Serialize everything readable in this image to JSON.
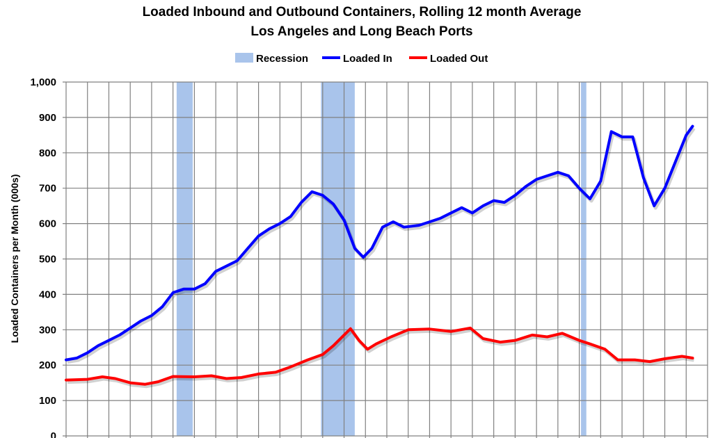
{
  "chart_data": {
    "type": "line",
    "title": "Loaded Inbound and Outbound Containers, Rolling 12 month Average",
    "subtitle": "Los Angeles and Long Beach Ports",
    "xlabel": "",
    "ylabel": "Loaded Containers per Month (000s)",
    "xlim": [
      1996,
      2026
    ],
    "ylim": [
      0,
      1000
    ],
    "yticks": [
      "0",
      "100",
      "200",
      "300",
      "400",
      "500",
      "600",
      "700",
      "800",
      "900",
      "1,000"
    ],
    "grid": true,
    "legend_placement": "top-center",
    "legend": [
      "Recession",
      "Loaded In",
      "Loaded Out"
    ],
    "colors": {
      "recession": "#A9C4EB",
      "loaded_in": "#0000FF",
      "loaded_out": "#FF0000"
    },
    "recessions": [
      [
        2001.17,
        2001.92
      ],
      [
        2007.92,
        2009.5
      ],
      [
        2020.08,
        2020.33
      ]
    ],
    "series": [
      {
        "name": "Loaded In",
        "x": [
          1996.0,
          1996.5,
          1997.0,
          1997.5,
          1998.0,
          1998.5,
          1999.0,
          1999.5,
          2000.0,
          2000.5,
          2001.0,
          2001.5,
          2002.0,
          2002.5,
          2003.0,
          2003.5,
          2004.0,
          2004.5,
          2005.0,
          2005.5,
          2006.0,
          2006.5,
          2007.0,
          2007.5,
          2008.0,
          2008.5,
          2009.0,
          2009.5,
          2009.9,
          2010.3,
          2010.8,
          2011.3,
          2011.8,
          2012.5,
          2013.0,
          2013.5,
          2014.0,
          2014.5,
          2015.0,
          2015.5,
          2016.0,
          2016.5,
          2017.0,
          2017.5,
          2018.0,
          2018.5,
          2019.0,
          2019.5,
          2020.0,
          2020.5,
          2021.0,
          2021.5,
          2022.0,
          2022.5,
          2023.0,
          2023.5,
          2024.0,
          2024.5,
          2025.0,
          2025.3
        ],
        "values": [
          215,
          220,
          235,
          255,
          270,
          285,
          305,
          325,
          340,
          365,
          405,
          415,
          415,
          430,
          465,
          480,
          495,
          530,
          565,
          585,
          600,
          620,
          660,
          690,
          680,
          655,
          610,
          530,
          505,
          530,
          590,
          605,
          590,
          595,
          605,
          615,
          630,
          645,
          630,
          650,
          665,
          660,
          680,
          705,
          725,
          735,
          745,
          735,
          700,
          670,
          720,
          860,
          845,
          845,
          730,
          650,
          700,
          775,
          850,
          875
        ]
      },
      {
        "name": "Loaded Out",
        "x": [
          1996.0,
          1997.0,
          1997.7,
          1998.3,
          1999.0,
          1999.7,
          2000.3,
          2001.0,
          2002.0,
          2002.8,
          2003.5,
          2004.2,
          2005.0,
          2005.8,
          2006.5,
          2007.3,
          2008.0,
          2008.5,
          2009.0,
          2009.3,
          2009.7,
          2010.1,
          2010.5,
          2011.2,
          2012.0,
          2013.0,
          2014.0,
          2014.9,
          2015.5,
          2016.3,
          2017.0,
          2017.8,
          2018.5,
          2019.2,
          2020.0,
          2020.5,
          2021.2,
          2021.8,
          2022.6,
          2023.3,
          2024.0,
          2024.8,
          2025.3
        ],
        "values": [
          158,
          160,
          167,
          162,
          150,
          146,
          153,
          168,
          167,
          170,
          162,
          165,
          175,
          180,
          195,
          215,
          230,
          255,
          285,
          303,
          270,
          245,
          260,
          280,
          300,
          302,
          295,
          305,
          275,
          265,
          270,
          285,
          280,
          290,
          270,
          260,
          245,
          215,
          215,
          210,
          218,
          225,
          220
        ]
      }
    ]
  }
}
